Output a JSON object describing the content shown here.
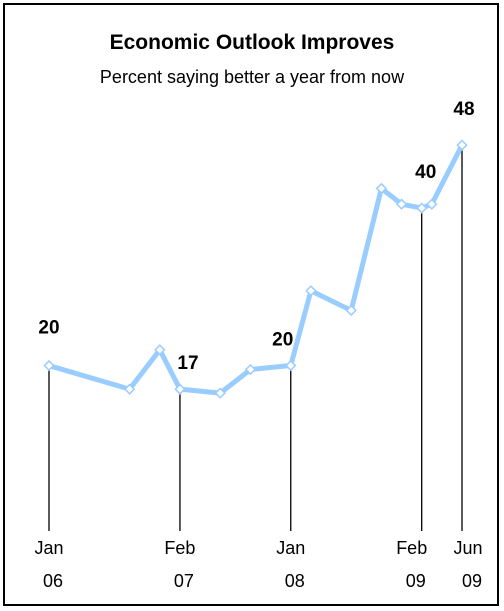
{
  "chart_data": {
    "type": "line",
    "title": "Economic Outlook Improves",
    "subtitle": "Percent saying better a year from now",
    "xlabel": "",
    "ylabel": "",
    "ylim": [
      0,
      55
    ],
    "grid": false,
    "line_color": "#99ccff",
    "marker_fill": "#ffffff",
    "series": [
      {
        "values": [
          {
            "x": "2006-01",
            "y": 20
          },
          {
            "x": "2006-09",
            "y": 17
          },
          {
            "x": "2006-12",
            "y": 22
          },
          {
            "x": "2007-02",
            "y": 17
          },
          {
            "x": "2007-06",
            "y": 16.5
          },
          {
            "x": "2007-09",
            "y": 19.5
          },
          {
            "x": "2008-01",
            "y": 20
          },
          {
            "x": "2008-03",
            "y": 29.5
          },
          {
            "x": "2008-07",
            "y": 27
          },
          {
            "x": "2008-10",
            "y": 42.5
          },
          {
            "x": "2008-12",
            "y": 40.5
          },
          {
            "x": "2009-02",
            "y": 40
          },
          {
            "x": "2009-03",
            "y": 40.5
          },
          {
            "x": "2009-06",
            "y": 48
          }
        ]
      }
    ],
    "data_labels": [
      {
        "x": "2006-01",
        "text": "20"
      },
      {
        "x": "2007-02",
        "text": "17"
      },
      {
        "x": "2008-01",
        "text": "20"
      },
      {
        "x": "2009-02",
        "text": "40"
      },
      {
        "x": "2009-06",
        "text": "48"
      }
    ],
    "ticks": [
      {
        "x": "2006-01",
        "line1": "Jan",
        "line2": "06"
      },
      {
        "x": "2007-02",
        "line1": "Feb",
        "line2": "07"
      },
      {
        "x": "2008-01",
        "line1": "Jan",
        "line2": "08"
      },
      {
        "x": "2009-02",
        "line1": "Feb",
        "line2": "09"
      },
      {
        "x": "2009-06",
        "line1": "Jun",
        "line2": "09"
      }
    ]
  }
}
